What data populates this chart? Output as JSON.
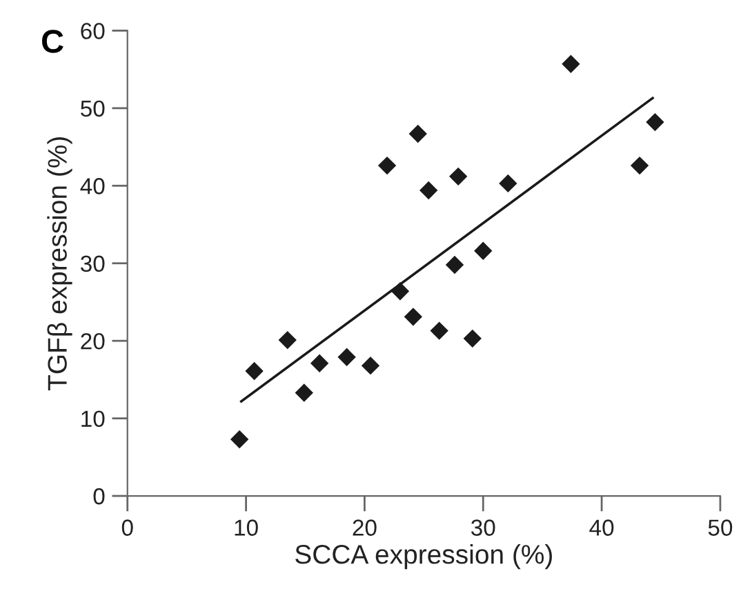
{
  "chart_data": {
    "type": "scatter",
    "xlabel": "SCCA expression (%)",
    "ylabel": "TGFβ expression (%)",
    "annotations": [
      "C"
    ],
    "xlim": [
      0,
      50
    ],
    "xticks": [
      0,
      10,
      20,
      30,
      40,
      50
    ],
    "ylim": [
      0,
      60
    ],
    "yticks": [
      0,
      10,
      20,
      30,
      40,
      50,
      60
    ],
    "grid": false,
    "legend": false,
    "series": [
      {
        "marker": "diamond",
        "color": "#1a1a1a",
        "x": [
          9.45,
          10.7,
          13.5,
          14.9,
          16.2,
          18.5,
          20.5,
          21.9,
          23.0,
          24.1,
          24.5,
          25.4,
          26.3,
          27.6,
          27.9,
          29.1,
          30.0,
          32.1,
          37.4,
          43.2,
          44.5
        ],
        "values": [
          7.3,
          16.1,
          20.1,
          13.3,
          17.1,
          17.9,
          16.8,
          42.6,
          26.4,
          23.1,
          46.7,
          39.4,
          21.3,
          29.8,
          41.2,
          20.3,
          31.6,
          40.3,
          55.7,
          42.6,
          48.2
        ]
      },
      {
        "type": "line",
        "marker": "none",
        "color": "#1a1a1a",
        "line_style": "solid",
        "x": [
          9.6,
          44.3
        ],
        "values": [
          12.2,
          51.3
        ]
      }
    ]
  }
}
